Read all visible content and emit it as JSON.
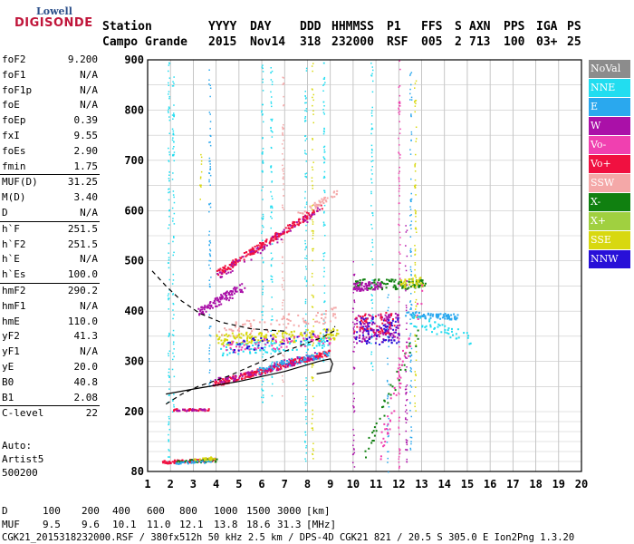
{
  "logo": {
    "line1": "Lowell",
    "line2": "DIGISONDE"
  },
  "header": {
    "row1": [
      "Station",
      "YYYY",
      "DAY",
      "DDD",
      "HHMMSS",
      "P1",
      "FFS",
      "S",
      "AXN",
      "PPS",
      "IGA",
      "PS"
    ],
    "row2": [
      "Campo Grande",
      "2015",
      "Nov14",
      "318",
      "232000",
      "RSF",
      "005",
      "2",
      "713",
      "100",
      "03+",
      "25"
    ]
  },
  "params": {
    "group1": [
      {
        "label": "foF2",
        "value": "9.200"
      },
      {
        "label": "foF1",
        "value": "N/A"
      },
      {
        "label": "foF1p",
        "value": "N/A"
      },
      {
        "label": "foE",
        "value": "N/A"
      },
      {
        "label": "foEp",
        "value": "0.39"
      },
      {
        "label": "fxI",
        "value": "9.55"
      },
      {
        "label": "foEs",
        "value": "2.90"
      },
      {
        "label": "fmin",
        "value": "1.75"
      }
    ],
    "group2": [
      {
        "label": "MUF(D)",
        "value": "31.25"
      },
      {
        "label": "M(D)",
        "value": "3.40"
      },
      {
        "label": "D",
        "value": "N/A"
      }
    ],
    "group3": [
      {
        "label": "h`F",
        "value": "251.5"
      },
      {
        "label": "h`F2",
        "value": "251.5"
      },
      {
        "label": "h`E",
        "value": "N/A"
      },
      {
        "label": "h`Es",
        "value": "100.0"
      }
    ],
    "group4": [
      {
        "label": "hmF2",
        "value": "290.2"
      },
      {
        "label": "hmF1",
        "value": "N/A"
      },
      {
        "label": "hmE",
        "value": "110.0"
      },
      {
        "label": "yF2",
        "value": "41.3"
      },
      {
        "label": "yF1",
        "value": "N/A"
      },
      {
        "label": "yE",
        "value": "20.0"
      },
      {
        "label": "B0",
        "value": "40.8"
      },
      {
        "label": "B1",
        "value": "2.08"
      }
    ],
    "group5": [
      {
        "label": "C-level",
        "value": "22"
      }
    ]
  },
  "auto": [
    "Auto:",
    "Artist5",
    "500200"
  ],
  "legend": [
    {
      "label": "NoVal",
      "color": "#8c8c8c"
    },
    {
      "label": "NNE",
      "color": "#22ddf0"
    },
    {
      "label": "E",
      "color": "#2aa8ee"
    },
    {
      "label": "W",
      "color": "#aa10a8"
    },
    {
      "label": "Vo-",
      "color": "#f040b0"
    },
    {
      "label": "Vo+",
      "color": "#f01040"
    },
    {
      "label": "SSW",
      "color": "#f4a8a8"
    },
    {
      "label": "X-",
      "color": "#108010"
    },
    {
      "label": "X+",
      "color": "#a0d040"
    },
    {
      "label": "SSE",
      "color": "#d8d810"
    },
    {
      "label": "NNW",
      "color": "#2810d8"
    }
  ],
  "footer": {
    "d_label": "D",
    "d_values": [
      "100",
      "200",
      "400",
      "600",
      "800",
      "1000",
      "1500",
      "3000"
    ],
    "d_unit": "[km]",
    "muf_label": "MUF",
    "muf_values": [
      "9.5",
      "9.6",
      "10.1",
      "11.0",
      "12.1",
      "13.8",
      "18.6",
      "31.3"
    ],
    "muf_unit": "[MHz]",
    "info": "CGK21_2015318232000.RSF / 380fx512h 50 kHz 2.5 km / DPS-4D CGK21 821 / 20.5 S 305.0 E Ion2Png 1.3.20"
  },
  "chart_data": {
    "type": "scatter",
    "x_ticks": [
      "1",
      "2",
      "3",
      "4",
      "5",
      "6",
      "7",
      "8",
      "9",
      "10",
      "11",
      "12",
      "13",
      "14",
      "15",
      "16",
      "17",
      "18",
      "19",
      "20"
    ],
    "y_ticks": [
      "80",
      "200",
      "300",
      "400",
      "500",
      "600",
      "700",
      "800",
      "900"
    ],
    "xlim": [
      1,
      20
    ],
    "ylim": [
      80,
      900
    ],
    "grid": true,
    "clusters": [
      {
        "color": "#f01040",
        "x0": 1.6,
        "x1": 4.0,
        "h0": 100,
        "h1": 105,
        "n": 120,
        "spread": 3
      },
      {
        "color": "#108010",
        "x0": 2.2,
        "x1": 4.0,
        "h0": 101,
        "h1": 104,
        "n": 40,
        "spread": 3
      },
      {
        "color": "#2aa8ee",
        "x0": 2.2,
        "x1": 3.8,
        "h0": 99,
        "h1": 102,
        "n": 30,
        "spread": 3
      },
      {
        "color": "#d8d810",
        "x0": 3.0,
        "x1": 4.0,
        "h0": 106,
        "h1": 108,
        "n": 25,
        "spread": 3
      },
      {
        "color": "#f01040",
        "x0": 2.0,
        "x1": 3.8,
        "h0": 205,
        "h1": 205,
        "n": 40,
        "spread": 2
      },
      {
        "color": "#aa10a8",
        "x0": 2.2,
        "x1": 3.6,
        "h0": 204,
        "h1": 206,
        "n": 20,
        "spread": 2
      },
      {
        "color": "#f01040",
        "x0": 3.8,
        "x1": 9.0,
        "h0": 255,
        "h1": 320,
        "n": 260,
        "spread": 6
      },
      {
        "color": "#aa10a8",
        "x0": 3.8,
        "x1": 8.5,
        "h0": 258,
        "h1": 315,
        "n": 90,
        "spread": 8
      },
      {
        "color": "#2aa8ee",
        "x0": 5.8,
        "x1": 8.9,
        "h0": 285,
        "h1": 318,
        "n": 60,
        "spread": 7
      },
      {
        "color": "#f01040",
        "x0": 4.0,
        "x1": 8.6,
        "h0": 475,
        "h1": 610,
        "n": 220,
        "spread": 7
      },
      {
        "color": "#aa10a8",
        "x0": 4.0,
        "x1": 8.6,
        "h0": 470,
        "h1": 605,
        "n": 60,
        "spread": 9
      },
      {
        "color": "#f4a8a8",
        "x0": 7.5,
        "x1": 9.3,
        "h0": 590,
        "h1": 640,
        "n": 40,
        "spread": 6
      },
      {
        "color": "#aa10a8",
        "x0": 3.2,
        "x1": 5.2,
        "h0": 400,
        "h1": 450,
        "n": 110,
        "spread": 9
      },
      {
        "color": "#d8d810",
        "x0": 4.0,
        "x1": 9.3,
        "h0": 345,
        "h1": 355,
        "n": 180,
        "spread": 12
      },
      {
        "color": "#22ddf0",
        "x0": 4.2,
        "x1": 9.0,
        "h0": 325,
        "h1": 340,
        "n": 90,
        "spread": 12
      },
      {
        "color": "#f040b0",
        "x0": 4.2,
        "x1": 9.0,
        "h0": 330,
        "h1": 345,
        "n": 70,
        "spread": 12
      },
      {
        "color": "#2810d8",
        "x0": 4.4,
        "x1": 9.0,
        "h0": 330,
        "h1": 355,
        "n": 40,
        "spread": 12
      },
      {
        "color": "#f4a8a8",
        "x0": 4.0,
        "x1": 9.2,
        "h0": 360,
        "h1": 395,
        "n": 80,
        "spread": 15
      },
      {
        "color": "#aa10a8",
        "x0": 10.0,
        "x1": 12.0,
        "h0": 365,
        "h1": 370,
        "n": 140,
        "spread": 28
      },
      {
        "color": "#2810d8",
        "x0": 10.0,
        "x1": 12.0,
        "h0": 360,
        "h1": 365,
        "n": 70,
        "spread": 28
      },
      {
        "color": "#f01040",
        "x0": 10.0,
        "x1": 11.8,
        "h0": 375,
        "h1": 380,
        "n": 50,
        "spread": 22
      },
      {
        "color": "#108010",
        "x0": 10.0,
        "x1": 13.2,
        "h0": 455,
        "h1": 455,
        "n": 110,
        "spread": 10
      },
      {
        "color": "#aa10a8",
        "x0": 10.0,
        "x1": 11.2,
        "h0": 450,
        "h1": 452,
        "n": 60,
        "spread": 9
      },
      {
        "color": "#2aa8ee",
        "x0": 12.2,
        "x1": 14.6,
        "h0": 395,
        "h1": 390,
        "n": 80,
        "spread": 6
      },
      {
        "color": "#22ddf0",
        "x0": 12.5,
        "x1": 15.2,
        "h0": 385,
        "h1": 345,
        "n": 50,
        "spread": 12
      },
      {
        "color": "#d8d810",
        "x0": 12.0,
        "x1": 13.0,
        "h0": 455,
        "h1": 460,
        "n": 40,
        "spread": 9
      },
      {
        "color": "#108010",
        "x0": 10.5,
        "x1": 13.0,
        "h0": 125,
        "h1": 380,
        "n": 40,
        "spread": 20
      },
      {
        "color": "#f040b0",
        "x0": 11.0,
        "x1": 13.0,
        "h0": 100,
        "h1": 450,
        "n": 50,
        "spread": 30
      }
    ],
    "vertical_streaks": [
      {
        "color": "#22ddf0",
        "x": 1.9,
        "h0": 80,
        "h1": 900
      },
      {
        "color": "#22ddf0",
        "x": 2.1,
        "h0": 200,
        "h1": 880
      },
      {
        "color": "#d8d810",
        "x": 3.3,
        "h0": 600,
        "h1": 720
      },
      {
        "color": "#2aa8ee",
        "x": 3.7,
        "h0": 250,
        "h1": 900
      },
      {
        "color": "#22ddf0",
        "x": 6.0,
        "h0": 220,
        "h1": 900
      },
      {
        "color": "#22ddf0",
        "x": 6.4,
        "h0": 200,
        "h1": 890
      },
      {
        "color": "#f4a8a8",
        "x": 6.9,
        "h0": 210,
        "h1": 880
      },
      {
        "color": "#22ddf0",
        "x": 7.9,
        "h0": 100,
        "h1": 900
      },
      {
        "color": "#d8d810",
        "x": 8.2,
        "h0": 100,
        "h1": 900
      },
      {
        "color": "#22ddf0",
        "x": 8.7,
        "h0": 300,
        "h1": 900
      },
      {
        "color": "#aa10a8",
        "x": 10.0,
        "h0": 80,
        "h1": 500
      },
      {
        "color": "#22ddf0",
        "x": 10.8,
        "h0": 280,
        "h1": 900
      },
      {
        "color": "#2aa8ee",
        "x": 11.5,
        "h0": 80,
        "h1": 460
      },
      {
        "color": "#f040b0",
        "x": 12.0,
        "h0": 80,
        "h1": 900
      },
      {
        "color": "#2aa8ee",
        "x": 12.5,
        "h0": 110,
        "h1": 900
      },
      {
        "color": "#d8d810",
        "x": 12.7,
        "h0": 200,
        "h1": 860
      },
      {
        "color": "#aa10a8",
        "x": 12.3,
        "h0": 100,
        "h1": 600
      }
    ],
    "profile_solid": [
      [
        1.8,
        235
      ],
      [
        3.0,
        245
      ],
      [
        5.0,
        260
      ],
      [
        7.0,
        280
      ],
      [
        8.5,
        300
      ],
      [
        9.0,
        305
      ],
      [
        9.1,
        295
      ],
      [
        9.0,
        280
      ],
      [
        8.4,
        275
      ]
    ],
    "profile_dashed": [
      [
        1.8,
        215
      ],
      [
        2.5,
        235
      ],
      [
        3.2,
        250
      ],
      [
        4.5,
        270
      ],
      [
        6.0,
        300
      ],
      [
        7.0,
        320
      ],
      [
        8.5,
        345
      ],
      [
        9.15,
        360
      ],
      [
        9.2,
        370
      ]
    ],
    "profile_dashed2": [
      [
        1.2,
        480
      ],
      [
        1.8,
        450
      ],
      [
        2.5,
        420
      ],
      [
        3.3,
        395
      ],
      [
        4.2,
        378
      ],
      [
        5.5,
        365
      ],
      [
        7.0,
        360
      ]
    ]
  }
}
